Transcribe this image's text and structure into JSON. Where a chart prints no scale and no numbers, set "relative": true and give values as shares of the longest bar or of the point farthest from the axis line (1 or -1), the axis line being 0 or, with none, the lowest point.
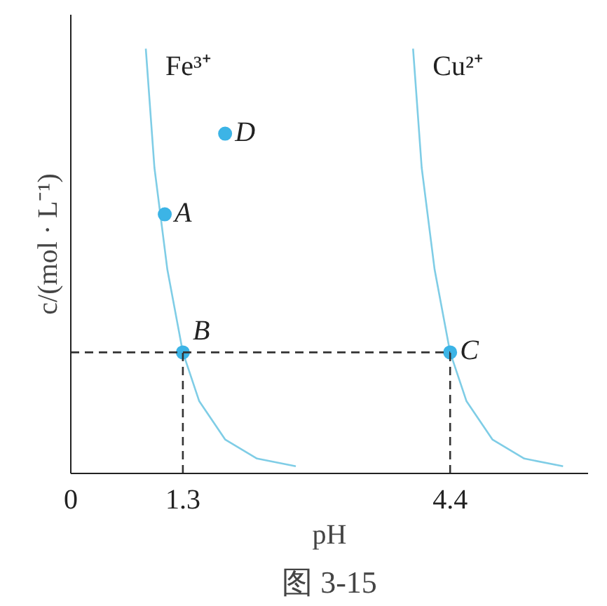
{
  "chart_data": {
    "type": "line",
    "relative": true,
    "xlabel": "pH",
    "ylabel": "c/(mol · L⁻¹)",
    "xlim": [
      0,
      6.0
    ],
    "xticks": [
      0,
      1.3,
      4.4
    ],
    "grid": false,
    "marker": "none",
    "line_style": "solid",
    "series": [
      {
        "name": "Fe³⁺",
        "color": "#7fcde6",
        "x": [
          0.87,
          0.97,
          1.12,
          1.3,
          1.49,
          1.79,
          2.16,
          2.61
        ],
        "values": [
          1.0,
          0.72,
          0.48,
          0.285,
          0.17,
          0.08,
          0.035,
          0.017
        ]
      },
      {
        "name": "Cu²⁺",
        "color": "#7fcde6",
        "x": [
          3.97,
          4.07,
          4.22,
          4.4,
          4.59,
          4.89,
          5.26,
          5.71
        ],
        "values": [
          1.0,
          0.72,
          0.48,
          0.285,
          0.17,
          0.08,
          0.035,
          0.017
        ]
      },
      {
        "type": "scatter",
        "marker": "circle",
        "color": "#3cb4e6",
        "x": [
          1.09,
          1.3,
          4.4,
          1.79
        ],
        "values": [
          0.61,
          0.285,
          0.285,
          0.8
        ]
      },
      {
        "color": "#333333",
        "line_style": "dashed",
        "x": [
          0,
          4.4
        ],
        "values": [
          0.285,
          0.285
        ]
      },
      {
        "color": "#333333",
        "line_style": "dashed",
        "x": [
          1.3,
          1.3
        ],
        "values": [
          0,
          0.285
        ]
      },
      {
        "color": "#333333",
        "line_style": "dashed",
        "x": [
          4.4,
          4.4
        ],
        "values": [
          0,
          0.285
        ]
      }
    ],
    "annotations": [
      {
        "text": "A",
        "x": 1.09,
        "y": 0.61
      },
      {
        "text": "B",
        "x": 1.3,
        "y": 0.285
      },
      {
        "text": "C",
        "x": 4.4,
        "y": 0.285
      },
      {
        "text": "D",
        "x": 1.79,
        "y": 0.8
      },
      "图 3-15"
    ]
  }
}
